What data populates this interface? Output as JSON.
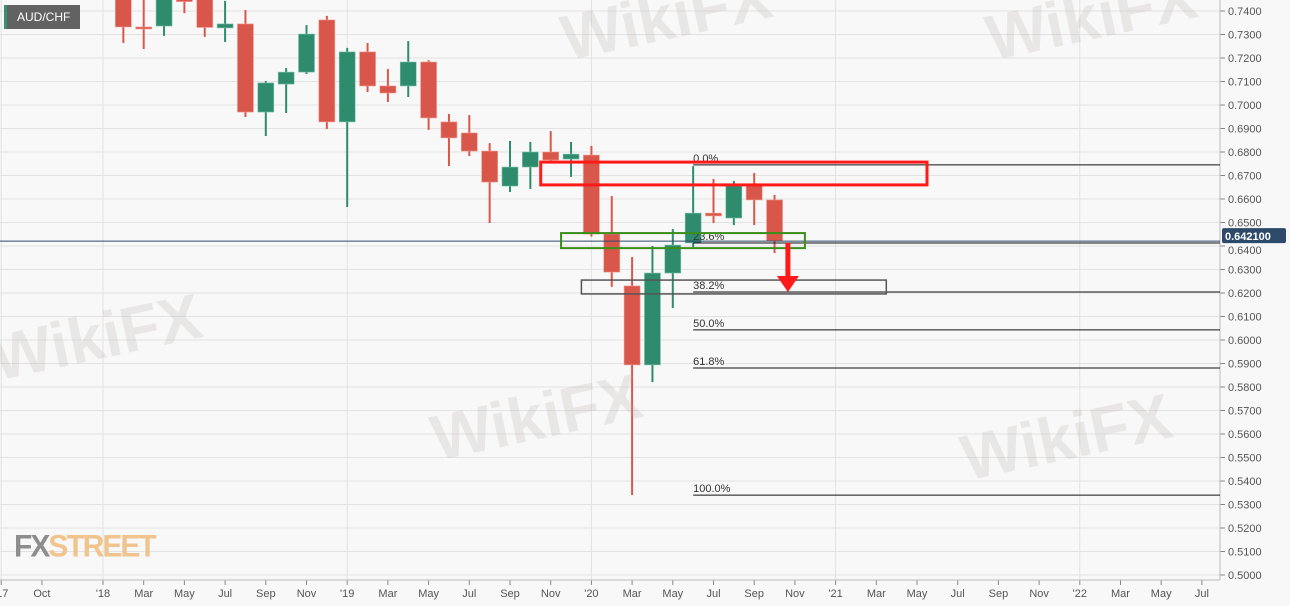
{
  "symbol": "AUD/CHF",
  "watermark": "WikiFX",
  "logo": {
    "fx": "FX",
    "street": "STREET"
  },
  "colors": {
    "up": "#2e8b6e",
    "down": "#d9574a",
    "price_line": "#2d4a6b",
    "price_label_bg": "#2d4a6b",
    "grid": "#e2e2e2",
    "resistance_box": "#ff1a1a",
    "support_box": "#3a8f1a",
    "target_box": "#555555",
    "arrow": "#ff1a1a"
  },
  "chart_data": {
    "type": "candlestick",
    "timeframe": "monthly",
    "ylim": [
      0.5,
      0.745
    ],
    "y_ticks": [
      "0.7400",
      "0.7300",
      "0.7200",
      "0.7100",
      "0.7000",
      "0.6900",
      "0.6800",
      "0.6700",
      "0.6600",
      "0.6500",
      "0.6400",
      "0.6300",
      "0.6200",
      "0.6100",
      "0.6000",
      "0.5900",
      "0.5800",
      "0.5700",
      "0.5600",
      "0.5500",
      "0.5400",
      "0.5300",
      "0.5200",
      "0.5100",
      "0.5000"
    ],
    "x_ticks": [
      {
        "label": "'17",
        "date": "2017-08"
      },
      {
        "label": "Oct",
        "date": "2017-10"
      },
      {
        "label": "'18",
        "date": "2018-01"
      },
      {
        "label": "Mar",
        "date": "2018-03"
      },
      {
        "label": "May",
        "date": "2018-05"
      },
      {
        "label": "Jul",
        "date": "2018-07"
      },
      {
        "label": "Sep",
        "date": "2018-09"
      },
      {
        "label": "Nov",
        "date": "2018-11"
      },
      {
        "label": "'19",
        "date": "2019-01"
      },
      {
        "label": "Mar",
        "date": "2019-03"
      },
      {
        "label": "May",
        "date": "2019-05"
      },
      {
        "label": "Jul",
        "date": "2019-07"
      },
      {
        "label": "Sep",
        "date": "2019-09"
      },
      {
        "label": "Nov",
        "date": "2019-11"
      },
      {
        "label": "'20",
        "date": "2020-01"
      },
      {
        "label": "Mar",
        "date": "2020-03"
      },
      {
        "label": "May",
        "date": "2020-05"
      },
      {
        "label": "Jul",
        "date": "2020-07"
      },
      {
        "label": "Sep",
        "date": "2020-09"
      },
      {
        "label": "Nov",
        "date": "2020-11"
      },
      {
        "label": "'21",
        "date": "2021-01"
      },
      {
        "label": "Mar",
        "date": "2021-03"
      },
      {
        "label": "May",
        "date": "2021-05"
      },
      {
        "label": "Jul",
        "date": "2021-07"
      },
      {
        "label": "Sep",
        "date": "2021-09"
      },
      {
        "label": "Nov",
        "date": "2021-11"
      },
      {
        "label": "'22",
        "date": "2022-01"
      },
      {
        "label": "Mar",
        "date": "2022-03"
      },
      {
        "label": "May",
        "date": "2022-05"
      },
      {
        "label": "Jul",
        "date": "2022-07"
      }
    ],
    "candles": [
      {
        "date": "2018-02",
        "o": 0.747,
        "h": 0.749,
        "l": 0.7264,
        "c": 0.7332
      },
      {
        "date": "2018-03",
        "o": 0.7332,
        "h": 0.746,
        "l": 0.7238,
        "c": 0.7325
      },
      {
        "date": "2018-04",
        "o": 0.7336,
        "h": 0.747,
        "l": 0.7294,
        "c": 0.745
      },
      {
        "date": "2018-05",
        "o": 0.75,
        "h": 0.752,
        "l": 0.7391,
        "c": 0.744
      },
      {
        "date": "2018-06",
        "o": 0.746,
        "h": 0.748,
        "l": 0.729,
        "c": 0.733
      },
      {
        "date": "2018-07",
        "o": 0.7328,
        "h": 0.7443,
        "l": 0.7268,
        "c": 0.7345
      },
      {
        "date": "2018-08",
        "o": 0.7345,
        "h": 0.7404,
        "l": 0.6949,
        "c": 0.697
      },
      {
        "date": "2018-09",
        "o": 0.697,
        "h": 0.7102,
        "l": 0.6868,
        "c": 0.7094
      },
      {
        "date": "2018-10",
        "o": 0.7089,
        "h": 0.7157,
        "l": 0.6966,
        "c": 0.714
      },
      {
        "date": "2018-11",
        "o": 0.714,
        "h": 0.734,
        "l": 0.7132,
        "c": 0.7302
      },
      {
        "date": "2018-12",
        "o": 0.7362,
        "h": 0.7379,
        "l": 0.6898,
        "c": 0.6928
      },
      {
        "date": "2019-01",
        "o": 0.6928,
        "h": 0.7243,
        "l": 0.6566,
        "c": 0.7226
      },
      {
        "date": "2019-02",
        "o": 0.7226,
        "h": 0.7264,
        "l": 0.7055,
        "c": 0.7081
      },
      {
        "date": "2019-03",
        "o": 0.7081,
        "h": 0.7153,
        "l": 0.7013,
        "c": 0.7051
      },
      {
        "date": "2019-04",
        "o": 0.7081,
        "h": 0.7272,
        "l": 0.7034,
        "c": 0.7183
      },
      {
        "date": "2019-05",
        "o": 0.7183,
        "h": 0.7191,
        "l": 0.6894,
        "c": 0.6945
      },
      {
        "date": "2019-06",
        "o": 0.6928,
        "h": 0.6962,
        "l": 0.674,
        "c": 0.686
      },
      {
        "date": "2019-07",
        "o": 0.6881,
        "h": 0.6957,
        "l": 0.6783,
        "c": 0.6804
      },
      {
        "date": "2019-08",
        "o": 0.6804,
        "h": 0.6838,
        "l": 0.6498,
        "c": 0.6672
      },
      {
        "date": "2019-09",
        "o": 0.6655,
        "h": 0.6847,
        "l": 0.663,
        "c": 0.6736
      },
      {
        "date": "2019-10",
        "o": 0.6736,
        "h": 0.6843,
        "l": 0.6643,
        "c": 0.68
      },
      {
        "date": "2019-11",
        "o": 0.68,
        "h": 0.6889,
        "l": 0.6762,
        "c": 0.6766
      },
      {
        "date": "2019-12",
        "o": 0.677,
        "h": 0.6843,
        "l": 0.6694,
        "c": 0.6791
      },
      {
        "date": "2020-01",
        "o": 0.6787,
        "h": 0.6826,
        "l": 0.644,
        "c": 0.6451
      },
      {
        "date": "2020-02",
        "o": 0.6451,
        "h": 0.6613,
        "l": 0.6226,
        "c": 0.6289
      },
      {
        "date": "2020-03",
        "o": 0.623,
        "h": 0.6353,
        "l": 0.534,
        "c": 0.5894
      },
      {
        "date": "2020-04",
        "o": 0.5894,
        "h": 0.64,
        "l": 0.5821,
        "c": 0.6285
      },
      {
        "date": "2020-05",
        "o": 0.6285,
        "h": 0.6472,
        "l": 0.6136,
        "c": 0.6404
      },
      {
        "date": "2020-06",
        "o": 0.6413,
        "h": 0.674,
        "l": 0.6396,
        "c": 0.654
      },
      {
        "date": "2020-07",
        "o": 0.654,
        "h": 0.6685,
        "l": 0.6498,
        "c": 0.6528
      },
      {
        "date": "2020-08",
        "o": 0.6519,
        "h": 0.6677,
        "l": 0.6489,
        "c": 0.6664
      },
      {
        "date": "2020-09",
        "o": 0.6664,
        "h": 0.6711,
        "l": 0.6489,
        "c": 0.6596
      },
      {
        "date": "2020-10",
        "o": 0.6596,
        "h": 0.6617,
        "l": 0.637,
        "c": 0.6421
      }
    ],
    "current_price": 0.6421,
    "current_price_label": "0.642100",
    "fibonacci": {
      "start_date": "2020-06",
      "levels": [
        {
          "label": "0.0%",
          "price": 0.6745
        },
        {
          "label": "23.6%",
          "price": 0.6413
        },
        {
          "label": "38.2%",
          "price": 0.6204
        },
        {
          "label": "50.0%",
          "price": 0.6043
        },
        {
          "label": "61.8%",
          "price": 0.5881
        },
        {
          "label": "100.0%",
          "price": 0.534
        }
      ]
    },
    "annotations": [
      {
        "kind": "resistance-box",
        "from": "2019-11",
        "to": "2021-05",
        "top": 0.6757,
        "bottom": 0.666
      },
      {
        "kind": "support-box",
        "from": "2019-12",
        "to": "2020-11",
        "top": 0.6455,
        "bottom": 0.6391
      },
      {
        "kind": "target-box",
        "from": "2020-01",
        "to": "2021-03",
        "top": 0.6255,
        "bottom": 0.6196
      },
      {
        "kind": "down-arrow",
        "date": "2020-11",
        "from": 0.6413,
        "to": 0.6204
      }
    ],
    "grid": true
  }
}
